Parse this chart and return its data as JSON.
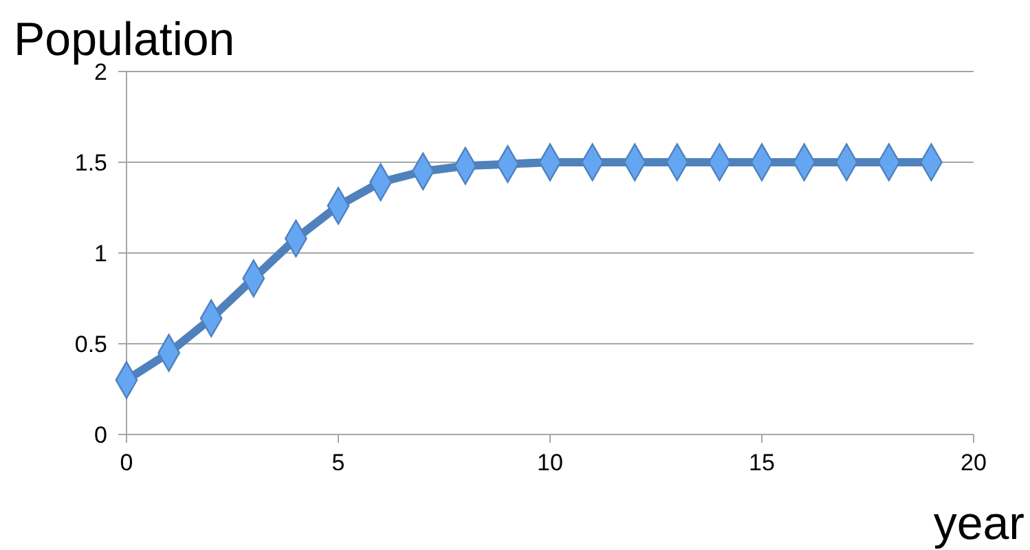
{
  "chart_data": {
    "type": "line",
    "title": "Population",
    "xlabel": "year",
    "x": [
      0,
      1,
      2,
      3,
      4,
      5,
      6,
      7,
      8,
      9,
      10,
      11,
      12,
      13,
      14,
      15,
      16,
      17,
      18,
      19
    ],
    "series": [
      {
        "color": "#4f81bd",
        "values": [
          0.3,
          0.45,
          0.64,
          0.86,
          1.08,
          1.26,
          1.39,
          1.45,
          1.48,
          1.49,
          1.5,
          1.5,
          1.5,
          1.5,
          1.5,
          1.5,
          1.5,
          1.5,
          1.5,
          1.5
        ]
      }
    ],
    "xlim": [
      0,
      20
    ],
    "xticks": [
      0,
      5,
      10,
      15,
      20
    ],
    "ylim": [
      0,
      2
    ],
    "yticks": [
      0,
      0.5,
      1,
      1.5,
      2
    ],
    "grid": "y",
    "marker": "diamond",
    "line_style": "solid"
  }
}
